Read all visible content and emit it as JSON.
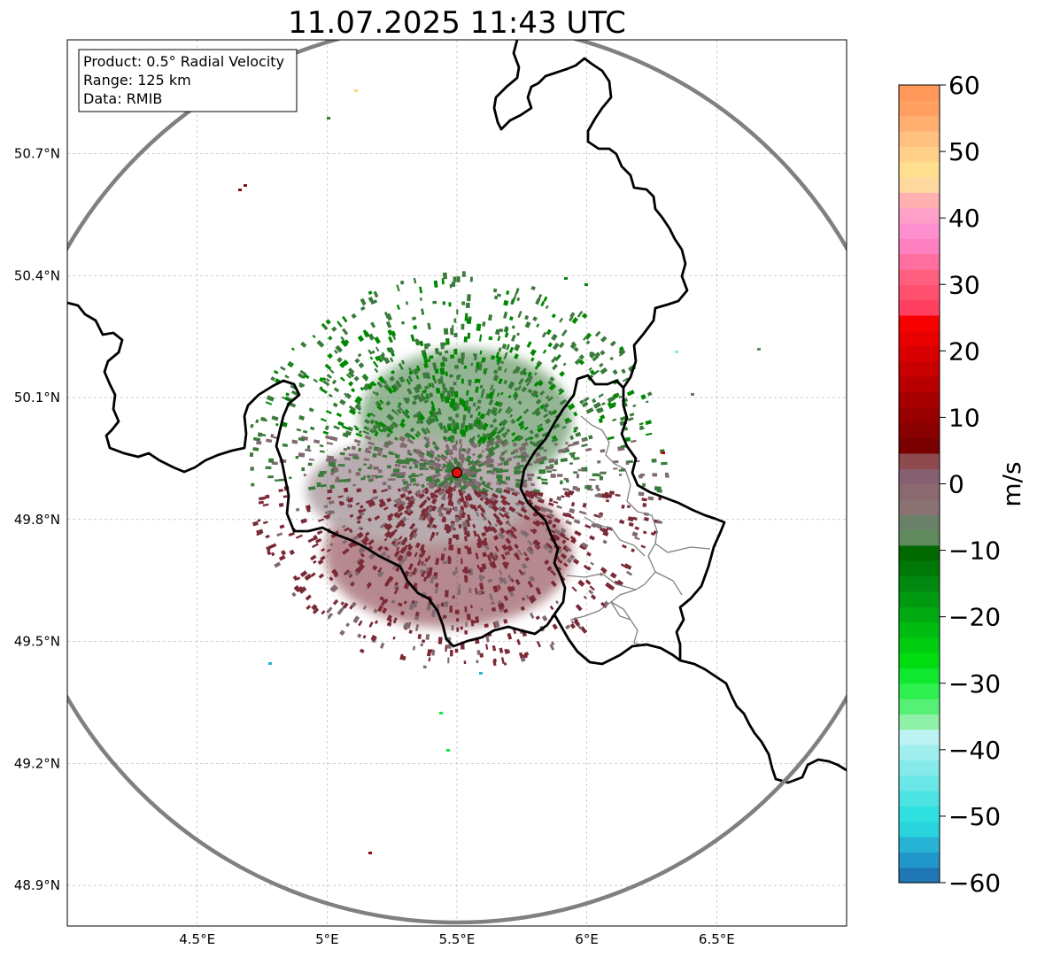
{
  "title": "11.07.2025 11:43 UTC",
  "info_box": {
    "product": "Product: 0.5° Radial Velocity",
    "range": "Range: 125 km",
    "data": "Data: RMIB"
  },
  "map": {
    "lon_range": [
      4.0,
      7.0
    ],
    "lat_range": [
      48.8,
      50.98
    ],
    "radar_site": {
      "lon": 5.5,
      "lat": 49.915
    },
    "range_ring_km": 125,
    "x_ticks": [
      {
        "lon": 4.5,
        "label": "4.5°E"
      },
      {
        "lon": 5.0,
        "label": "5°E"
      },
      {
        "lon": 5.5,
        "label": "5.5°E"
      },
      {
        "lon": 6.0,
        "label": "6°E"
      },
      {
        "lon": 6.5,
        "label": "6.5°E"
      }
    ],
    "y_ticks": [
      {
        "lat": 50.7,
        "label": "50.7°N"
      },
      {
        "lat": 50.4,
        "label": "50.4°N"
      },
      {
        "lat": 50.1,
        "label": "50.1°N"
      },
      {
        "lat": 49.8,
        "label": "49.8°N"
      },
      {
        "lat": 49.5,
        "label": "49.5°N"
      },
      {
        "lat": 49.2,
        "label": "49.2°N"
      },
      {
        "lat": 48.9,
        "label": "48.9°N"
      }
    ]
  },
  "colorbar": {
    "unit": "m/s",
    "min": -60,
    "max": 60,
    "ticks": [
      {
        "value": 60,
        "label": "60"
      },
      {
        "value": 50,
        "label": "50"
      },
      {
        "value": 40,
        "label": "40"
      },
      {
        "value": 30,
        "label": "30"
      },
      {
        "value": 20,
        "label": "20"
      },
      {
        "value": 10,
        "label": "10"
      },
      {
        "value": 0,
        "label": "0"
      },
      {
        "value": -10,
        "label": "−10"
      },
      {
        "value": -20,
        "label": "−20"
      },
      {
        "value": -30,
        "label": "−30"
      },
      {
        "value": -40,
        "label": "−40"
      },
      {
        "value": -50,
        "label": "−50"
      },
      {
        "value": -60,
        "label": "−60"
      }
    ],
    "colors_bottom_to_top": [
      "#1f77b4",
      "#2196c8",
      "#26b3d6",
      "#2ad4dd",
      "#2ee0e0",
      "#4de3e3",
      "#6ae6e6",
      "#86eaea",
      "#a0eeee",
      "#bdf2f2",
      "#8ff0a8",
      "#55f075",
      "#2ef050",
      "#10e830",
      "#00dc10",
      "#00cc10",
      "#00bb10",
      "#00aa10",
      "#009a10",
      "#008810",
      "#007808",
      "#006a00",
      "#5e8a5e",
      "#6a8068",
      "#8a7272",
      "#8a6a70",
      "#866070",
      "#8e4a4e",
      "#7a0000",
      "#880000",
      "#980000",
      "#a80000",
      "#b80000",
      "#c80000",
      "#d80000",
      "#e80000",
      "#f80000",
      "#ff4060",
      "#ff5070",
      "#ff6080",
      "#ff70a0",
      "#ff80c0",
      "#ff90d0",
      "#ffa0c8",
      "#ffb0b0",
      "#ffd8a0",
      "#ffe090",
      "#ffd088",
      "#ffc080",
      "#ffb070",
      "#ffa060",
      "#ff9858"
    ]
  },
  "colors": {
    "range_ring": "#808080",
    "country_border": "#000000",
    "admin_border": "#808080",
    "grid": "#b0b0b0",
    "radar_marker": "#e01010",
    "echo_approaching": "#3a7a3a",
    "echo_approaching_strong": "#008800",
    "echo_receding": "#7a2a35",
    "echo_near_zero": "#806a70"
  }
}
